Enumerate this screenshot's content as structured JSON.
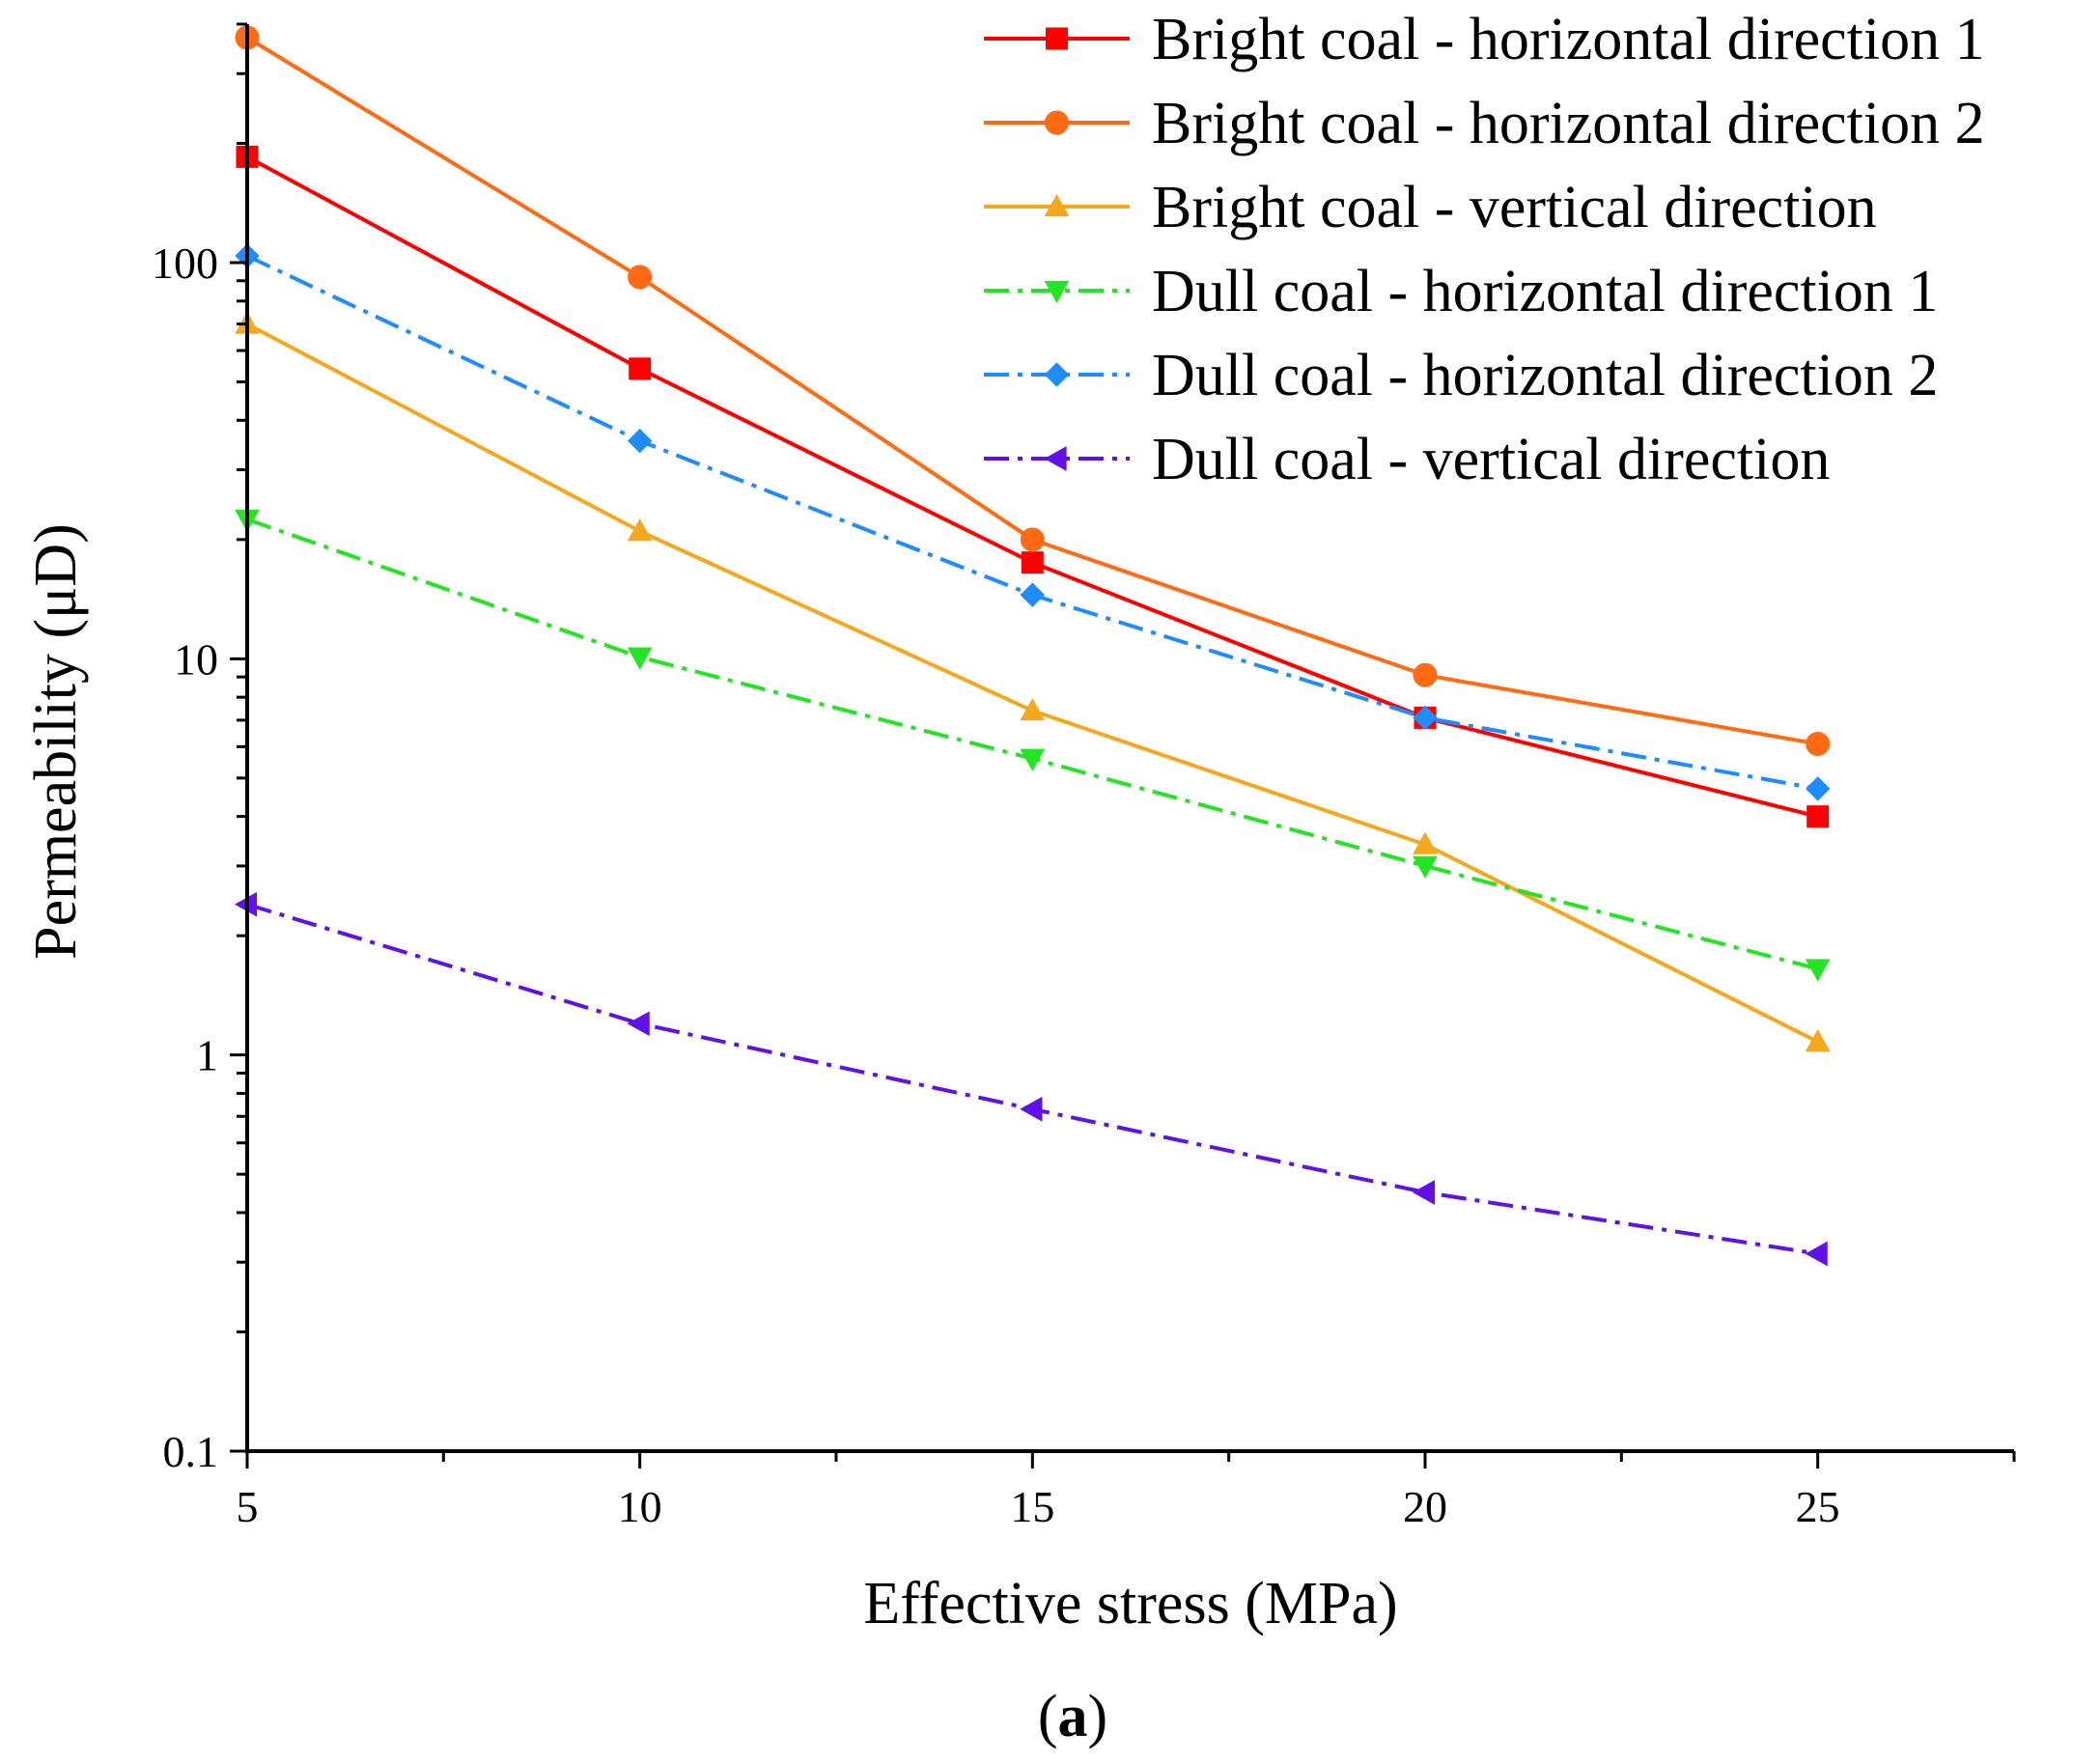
{
  "chart_data": {
    "type": "line",
    "xlabel": "Effective stress (MPa)",
    "ylabel": "Permeability (μD)",
    "panel_label": "(a)",
    "panel_letter": "a",
    "x": [
      5,
      10,
      15,
      20,
      25
    ],
    "xlim": [
      5,
      27.5
    ],
    "ylim": [
      0.1,
      400
    ],
    "yscale": "log",
    "xticks": [
      5,
      10,
      15,
      20,
      25
    ],
    "xtick_labels": [
      "5",
      "10",
      "15",
      "20",
      "25"
    ],
    "yticks": [
      0.1,
      1,
      10,
      100
    ],
    "ytick_labels": [
      "0.1",
      "1",
      "10",
      "100"
    ],
    "grid": false,
    "legend_position": "top-right",
    "series": [
      {
        "name": "Bright coal - horizontal direction 1",
        "color": "#ff0000",
        "marker": "square",
        "line": "solid",
        "values": [
          185,
          54,
          17.5,
          7.1,
          4.0
        ]
      },
      {
        "name": "Bright coal - horizontal direction 2",
        "color": "#ff6a13",
        "marker": "circle",
        "line": "solid",
        "values": [
          370,
          92,
          20,
          9.1,
          6.1
        ]
      },
      {
        "name": "Bright coal - vertical direction",
        "color": "#f5a81c",
        "marker": "triangle-up",
        "line": "solid",
        "values": [
          70,
          21,
          7.4,
          3.4,
          1.08
        ]
      },
      {
        "name": "Dull coal - horizontal direction 1",
        "color": "#22e622",
        "marker": "triangle-down",
        "line": "dashdot",
        "values": [
          22.5,
          10.1,
          5.6,
          3.0,
          1.65
        ]
      },
      {
        "name": "Dull coal - horizontal direction 2",
        "color": "#1e8cff",
        "marker": "diamond",
        "line": "dashdot",
        "values": [
          104,
          35.5,
          14.5,
          7.1,
          4.7
        ]
      },
      {
        "name": "Dull coal - vertical direction",
        "color": "#6010e8",
        "marker": "triangle-left",
        "line": "dashdot",
        "values": [
          2.4,
          1.2,
          0.73,
          0.45,
          0.315
        ]
      }
    ]
  }
}
